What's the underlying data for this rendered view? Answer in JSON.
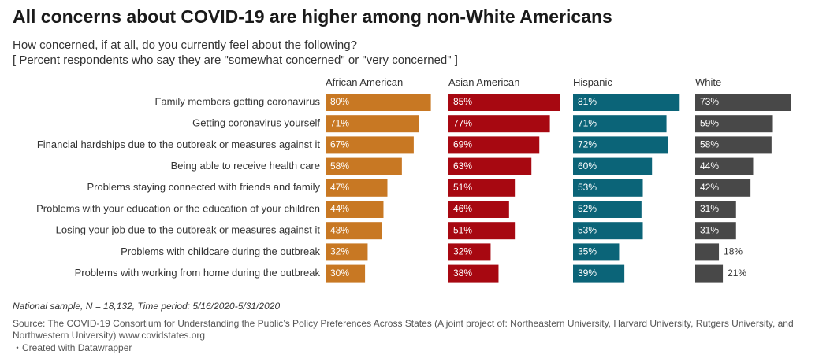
{
  "chart_data": {
    "type": "bar",
    "orientation": "horizontal",
    "layout": "small-multiples",
    "title": "All concerns about COVID-19 are higher among non-White Americans",
    "subtitle": "How concerned, if at all, do you currently feel about the following?",
    "subtitle2": "[ Percent respondents who say they are \"somewhat concerned\" or \"very concerned\" ]",
    "value_suffix": "%",
    "xlim": [
      0,
      100
    ],
    "grid": false,
    "categories": [
      "Family members getting coronavirus",
      "Getting coronavirus yourself",
      "Financial hardships due to the outbreak or measures against it",
      "Being able to receive health care",
      "Problems staying connected with friends and family",
      "Problems with your education or the education of your children",
      "Losing your job due to the outbreak or measures against it",
      "Problems with childcare during the outbreak",
      "Problems with working from home during the outbreak"
    ],
    "series": [
      {
        "name": "African American",
        "color": "#c87823",
        "values": [
          80,
          71,
          67,
          58,
          47,
          44,
          43,
          32,
          30
        ]
      },
      {
        "name": "Asian American",
        "color": "#a70811",
        "values": [
          85,
          77,
          69,
          63,
          51,
          46,
          51,
          32,
          38
        ]
      },
      {
        "name": "Hispanic",
        "color": "#0b6478",
        "values": [
          81,
          71,
          72,
          60,
          53,
          52,
          53,
          35,
          39
        ]
      },
      {
        "name": "White",
        "color": "#484848",
        "values": [
          73,
          59,
          58,
          44,
          42,
          31,
          31,
          18,
          21
        ]
      }
    ],
    "notes": "National sample, N = 18,132, Time period: 5/16/2020-5/31/2020",
    "source": "Source: The COVID-19 Consortium for Understanding the Public’s Policy Preferences Across States (A joint project of: Northeastern University, Harvard University, Rutgers University, and Northwestern University) www.covidstates.org",
    "credit": "・Created with Datawrapper"
  }
}
